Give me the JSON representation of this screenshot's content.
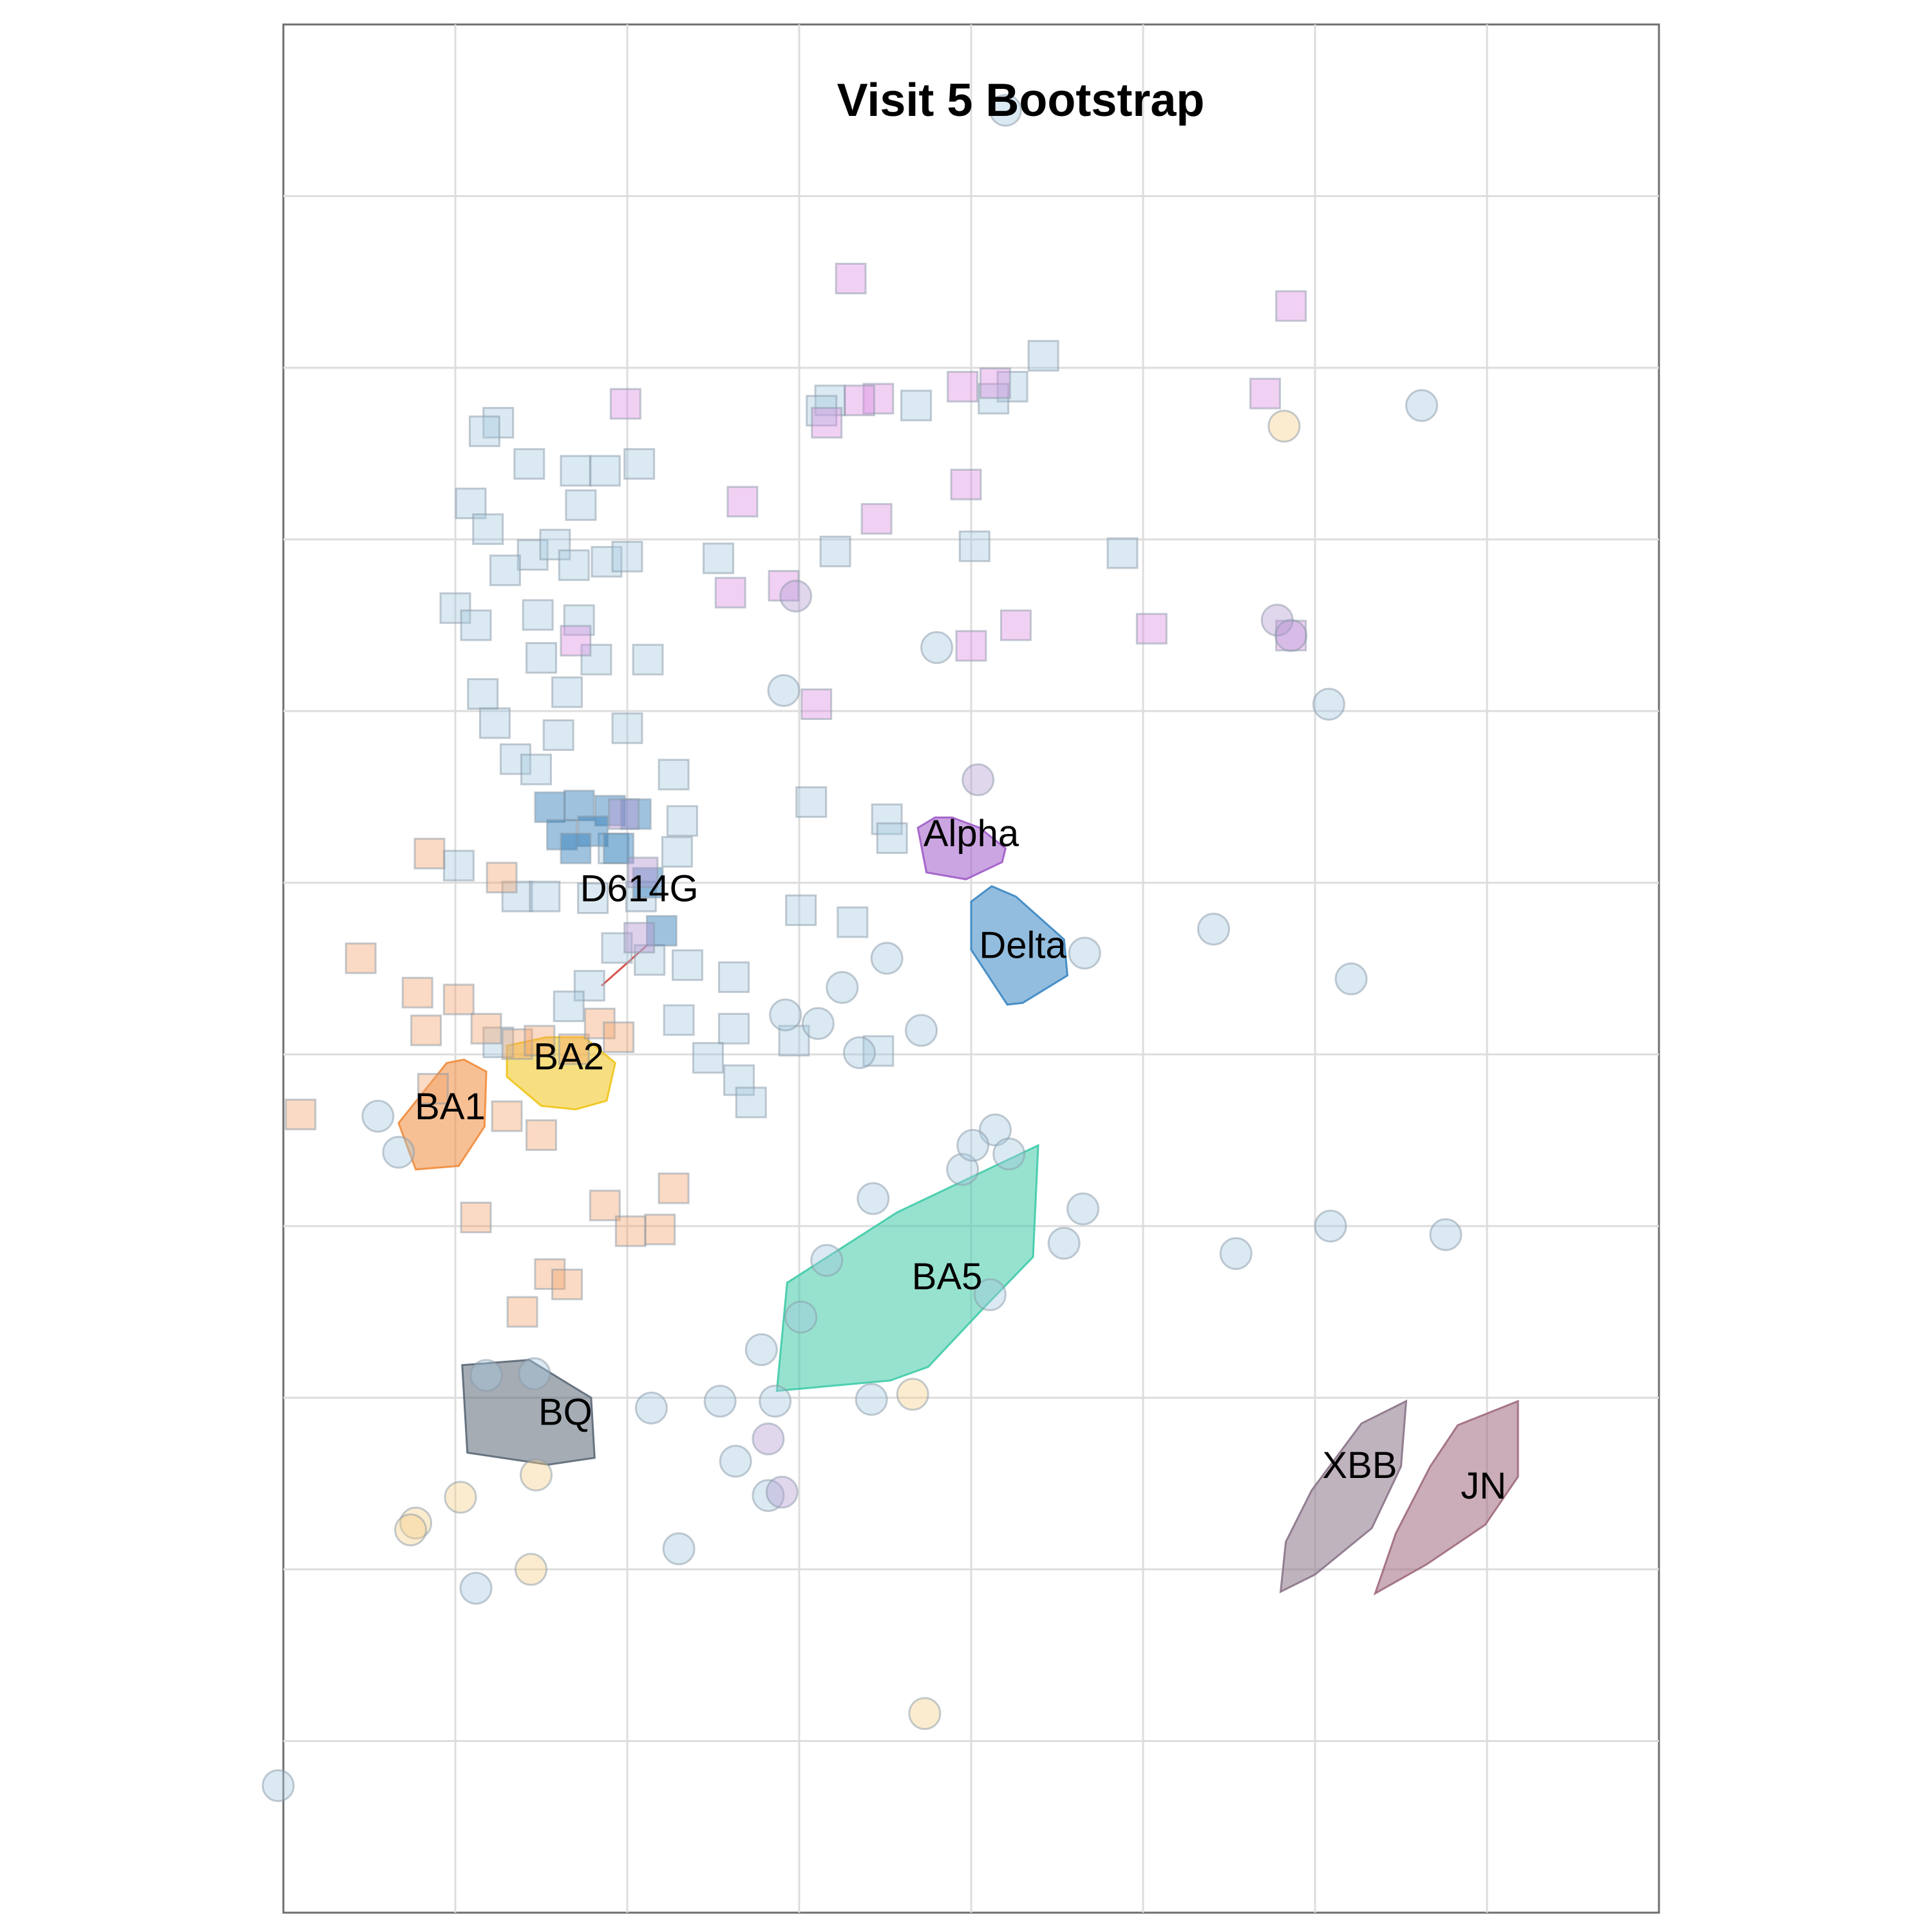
{
  "chart_data": {
    "type": "scatter",
    "title": "Visit 5 Bootstrap",
    "xlabel": "",
    "ylabel": "",
    "xlim": [
      -1,
      7
    ],
    "ylim": [
      -1,
      10
    ],
    "grid": true,
    "x_gridlines": [
      0,
      1,
      2,
      3,
      4,
      5,
      6
    ],
    "y_gridlines": [
      0,
      1,
      2,
      3,
      4,
      5,
      6,
      7,
      8,
      9
    ],
    "colors": {
      "light_blue": "#a6c8de",
      "orange": "#f3a26b",
      "pink": "#dc8be0",
      "purple": "#b59ad2",
      "yellow": "#f5d08a",
      "blue": "#2b7bb9",
      "line": "#d9534f"
    },
    "clusters": [
      {
        "name": "Alpha",
        "color": "#a05bc8",
        "label": [
          3.0,
          5.27
        ],
        "hull": [
          [
            2.69,
            5.32
          ],
          [
            2.79,
            5.38
          ],
          [
            2.89,
            5.38
          ],
          [
            3.05,
            5.32
          ],
          [
            3.2,
            5.2
          ],
          [
            3.18,
            5.12
          ],
          [
            2.97,
            5.02
          ],
          [
            2.74,
            5.06
          ]
        ]
      },
      {
        "name": "Delta",
        "color": "#3a86c2",
        "label": [
          3.3,
          4.62
        ],
        "hull": [
          [
            3.0,
            4.89
          ],
          [
            3.12,
            4.98
          ],
          [
            3.26,
            4.92
          ],
          [
            3.54,
            4.67
          ],
          [
            3.56,
            4.46
          ],
          [
            3.3,
            4.3
          ],
          [
            3.21,
            4.29
          ],
          [
            3.0,
            4.61
          ]
        ]
      },
      {
        "name": "D614G",
        "color": "#d9534f",
        "label": [
          1.07,
          4.95
        ],
        "hull": [
          [
            0.85,
            4.4
          ],
          [
            1.12,
            4.64
          ]
        ]
      },
      {
        "name": "BA2",
        "color": "#f0c419",
        "label": [
          0.66,
          3.97
        ],
        "hull": [
          [
            0.3,
            4.05
          ],
          [
            0.53,
            4.1
          ],
          [
            0.75,
            4.1
          ],
          [
            0.93,
            3.95
          ],
          [
            0.88,
            3.73
          ],
          [
            0.7,
            3.68
          ],
          [
            0.5,
            3.7
          ],
          [
            0.3,
            3.87
          ]
        ]
      },
      {
        "name": "BA1",
        "color": "#f08c3c",
        "label": [
          -0.03,
          3.68
        ],
        "hull": [
          [
            -0.05,
            3.95
          ],
          [
            0.05,
            3.97
          ],
          [
            0.18,
            3.9
          ],
          [
            0.17,
            3.58
          ],
          [
            0.02,
            3.35
          ],
          [
            -0.23,
            3.33
          ],
          [
            -0.33,
            3.6
          ]
        ]
      },
      {
        "name": "BA5",
        "color": "#3fcba8",
        "label": [
          2.86,
          2.69
        ],
        "hull": [
          [
            1.93,
            2.67
          ],
          [
            2.57,
            3.08
          ],
          [
            3.39,
            3.47
          ],
          [
            3.36,
            2.82
          ],
          [
            3.07,
            2.52
          ],
          [
            2.75,
            2.18
          ],
          [
            2.53,
            2.1
          ],
          [
            1.87,
            2.04
          ]
        ]
      },
      {
        "name": "BQ",
        "color": "#5b6876",
        "label": [
          0.64,
          1.9
        ],
        "hull": [
          [
            0.04,
            2.19
          ],
          [
            0.43,
            2.22
          ],
          [
            0.79,
            2.0
          ],
          [
            0.81,
            1.65
          ],
          [
            0.54,
            1.61
          ],
          [
            0.07,
            1.68
          ]
        ]
      },
      {
        "name": "XBB",
        "color": "#8b7488",
        "label": [
          5.26,
          1.59
        ],
        "hull": [
          [
            5.27,
            1.85
          ],
          [
            5.53,
            1.98
          ],
          [
            5.5,
            1.6
          ],
          [
            5.33,
            1.24
          ],
          [
            5.0,
            0.97
          ],
          [
            4.8,
            0.87
          ],
          [
            4.83,
            1.16
          ],
          [
            4.98,
            1.46
          ]
        ]
      },
      {
        "name": "JN",
        "color": "#9e6a7e",
        "label": [
          5.98,
          1.47
        ],
        "hull": [
          [
            5.83,
            1.84
          ],
          [
            6.18,
            1.98
          ],
          [
            6.18,
            1.54
          ],
          [
            5.99,
            1.26
          ],
          [
            5.65,
            1.03
          ],
          [
            5.35,
            0.86
          ],
          [
            5.47,
            1.21
          ],
          [
            5.67,
            1.6
          ]
        ]
      }
    ],
    "series": [
      {
        "marker": "square",
        "color": "#a6c8de",
        "points": [
          [
            3.42,
            8.07
          ],
          [
            3.24,
            7.89
          ],
          [
            3.13,
            7.82
          ],
          [
            2.68,
            7.78
          ],
          [
            2.18,
            7.81
          ],
          [
            2.13,
            7.75
          ],
          [
            0.25,
            7.68
          ],
          [
            0.17,
            7.63
          ],
          [
            0.43,
            7.44
          ],
          [
            0.7,
            7.4
          ],
          [
            0.87,
            7.4
          ],
          [
            1.07,
            7.44
          ],
          [
            0.09,
            7.21
          ],
          [
            0.73,
            7.2
          ],
          [
            0.19,
            7.06
          ],
          [
            0.45,
            6.91
          ],
          [
            0.58,
            6.97
          ],
          [
            0.29,
            6.82
          ],
          [
            0.69,
            6.85
          ],
          [
            0.88,
            6.87
          ],
          [
            1.0,
            6.9
          ],
          [
            1.53,
            6.89
          ],
          [
            2.21,
            6.93
          ],
          [
            3.02,
            6.96
          ],
          [
            3.88,
            6.92
          ],
          [
            0.0,
            6.6
          ],
          [
            0.12,
            6.5
          ],
          [
            0.48,
            6.56
          ],
          [
            0.72,
            6.53
          ],
          [
            0.5,
            6.31
          ],
          [
            0.82,
            6.3
          ],
          [
            1.12,
            6.3
          ],
          [
            0.65,
            6.11
          ],
          [
            0.16,
            6.1
          ],
          [
            0.23,
            5.93
          ],
          [
            1.0,
            5.9
          ],
          [
            0.6,
            5.86
          ],
          [
            0.35,
            5.72
          ],
          [
            0.47,
            5.66
          ],
          [
            1.27,
            5.63
          ],
          [
            2.07,
            5.47
          ],
          [
            2.51,
            5.37
          ],
          [
            1.32,
            5.36
          ],
          [
            2.54,
            5.26
          ],
          [
            0.92,
            5.2
          ],
          [
            1.29,
            5.18
          ],
          [
            0.02,
            5.1
          ],
          [
            0.36,
            4.92
          ],
          [
            0.52,
            4.92
          ],
          [
            0.8,
            4.91
          ],
          [
            1.08,
            4.92
          ],
          [
            2.01,
            4.84
          ],
          [
            2.31,
            4.77
          ],
          [
            0.94,
            4.62
          ],
          [
            1.13,
            4.55
          ],
          [
            1.35,
            4.52
          ],
          [
            1.62,
            4.45
          ],
          [
            0.78,
            4.4
          ],
          [
            0.66,
            4.28
          ],
          [
            1.3,
            4.2
          ],
          [
            1.62,
            4.15
          ],
          [
            1.97,
            4.08
          ],
          [
            2.46,
            4.02
          ],
          [
            0.25,
            4.07
          ],
          [
            1.47,
            3.98
          ],
          [
            1.65,
            3.85
          ],
          [
            1.72,
            3.72
          ]
        ]
      },
      {
        "marker": "square",
        "color": "#f3a26b",
        "points": [
          [
            -0.15,
            5.17
          ],
          [
            0.27,
            5.03
          ],
          [
            -0.55,
            4.56
          ],
          [
            -0.22,
            4.36
          ],
          [
            0.02,
            4.32
          ],
          [
            0.18,
            4.15
          ],
          [
            0.36,
            4.06
          ],
          [
            0.49,
            4.08
          ],
          [
            0.69,
            4.03
          ],
          [
            0.84,
            4.18
          ],
          [
            0.95,
            4.1
          ],
          [
            -0.17,
            4.14
          ],
          [
            -0.13,
            3.8
          ],
          [
            -0.9,
            3.65
          ],
          [
            0.3,
            3.64
          ],
          [
            0.5,
            3.53
          ],
          [
            1.27,
            3.22
          ],
          [
            0.87,
            3.12
          ],
          [
            1.02,
            2.97
          ],
          [
            1.19,
            2.98
          ],
          [
            0.12,
            3.05
          ],
          [
            0.55,
            2.72
          ],
          [
            0.39,
            2.5
          ],
          [
            0.65,
            2.66
          ]
        ]
      },
      {
        "marker": "square",
        "color": "#dc8be0",
        "points": [
          [
            2.3,
            8.52
          ],
          [
            4.86,
            8.36
          ],
          [
            4.71,
            7.85
          ],
          [
            2.95,
            7.89
          ],
          [
            2.46,
            7.82
          ],
          [
            2.35,
            7.81
          ],
          [
            2.16,
            7.68
          ],
          [
            2.97,
            7.32
          ],
          [
            0.99,
            7.79
          ],
          [
            3.14,
            7.91
          ],
          [
            1.6,
            6.69
          ],
          [
            3.26,
            6.5
          ],
          [
            4.05,
            6.48
          ],
          [
            4.86,
            6.44
          ],
          [
            3.0,
            6.38
          ],
          [
            1.67,
            7.22
          ],
          [
            1.91,
            6.73
          ],
          [
            0.7,
            6.41
          ],
          [
            2.1,
            6.04
          ],
          [
            2.45,
            7.12
          ]
        ]
      },
      {
        "marker": "circle",
        "color": "#a6c8de",
        "points": [
          [
            3.2,
            9.5
          ],
          [
            5.62,
            7.78
          ],
          [
            2.8,
            6.37
          ],
          [
            1.91,
            6.12
          ],
          [
            5.08,
            6.04
          ],
          [
            4.41,
            4.73
          ],
          [
            3.66,
            4.59
          ],
          [
            2.51,
            4.56
          ],
          [
            5.21,
            4.44
          ],
          [
            2.11,
            4.18
          ],
          [
            2.25,
            4.39
          ],
          [
            1.92,
            4.23
          ],
          [
            2.35,
            4.01
          ],
          [
            2.71,
            4.14
          ],
          [
            3.14,
            3.56
          ],
          [
            2.95,
            3.33
          ],
          [
            3.01,
            3.47
          ],
          [
            3.22,
            3.42
          ],
          [
            2.43,
            3.16
          ],
          [
            3.65,
            3.1
          ],
          [
            3.54,
            2.9
          ],
          [
            5.09,
            3.0
          ],
          [
            5.76,
            2.95
          ],
          [
            2.16,
            2.8
          ],
          [
            4.54,
            2.84
          ],
          [
            2.01,
            2.47
          ],
          [
            1.78,
            2.28
          ],
          [
            1.54,
            1.98
          ],
          [
            3.11,
            2.6
          ],
          [
            1.14,
            1.94
          ],
          [
            1.86,
            1.98
          ],
          [
            1.82,
            1.43
          ],
          [
            1.63,
            1.63
          ],
          [
            2.42,
            1.99
          ],
          [
            0.18,
            2.13
          ],
          [
            0.46,
            2.14
          ],
          [
            -0.45,
            3.64
          ],
          [
            -0.33,
            3.43
          ],
          [
            0.12,
            0.89
          ],
          [
            1.3,
            1.12
          ],
          [
            -1.03,
            -0.26
          ]
        ]
      },
      {
        "marker": "circle",
        "color": "#f5d08a",
        "points": [
          [
            4.82,
            7.66
          ],
          [
            2.66,
            2.02
          ],
          [
            0.47,
            1.55
          ],
          [
            -0.23,
            1.27
          ],
          [
            -0.26,
            1.23
          ],
          [
            0.03,
            1.42
          ],
          [
            0.44,
            1.0
          ],
          [
            2.73,
            0.16
          ]
        ]
      },
      {
        "marker": "circle",
        "color": "#b59ad2",
        "points": [
          [
            4.78,
            6.53
          ],
          [
            4.86,
            6.44
          ],
          [
            1.98,
            6.67
          ],
          [
            3.04,
            5.6
          ],
          [
            1.82,
            1.76
          ],
          [
            1.9,
            1.45
          ]
        ]
      }
    ],
    "annotations": [
      {
        "marker": "square",
        "color": "#2b7bb9",
        "points": [
          [
            0.55,
            5.44
          ],
          [
            0.72,
            5.45
          ],
          [
            0.9,
            5.42
          ],
          [
            0.62,
            5.28
          ],
          [
            0.8,
            5.3
          ],
          [
            1.05,
            5.4
          ],
          [
            0.95,
            5.2
          ],
          [
            0.7,
            5.2
          ],
          [
            1.12,
            5.0
          ],
          [
            1.2,
            4.72
          ]
        ]
      },
      {
        "marker": "square",
        "color": "#b59ad2",
        "points": [
          [
            0.98,
            5.4
          ],
          [
            1.09,
            5.06
          ],
          [
            1.07,
            4.68
          ]
        ]
      }
    ]
  }
}
